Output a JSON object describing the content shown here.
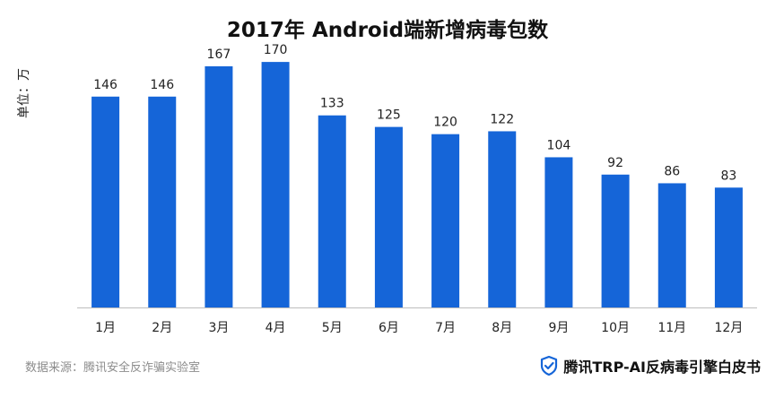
{
  "chart_data": {
    "type": "bar",
    "title": "2017年 Android端新增病毒包数",
    "ylabel": "单位：万",
    "xlabel": "",
    "categories": [
      "1月",
      "2月",
      "3月",
      "4月",
      "5月",
      "6月",
      "7月",
      "8月",
      "9月",
      "10月",
      "11月",
      "12月"
    ],
    "values": [
      146,
      146,
      167,
      170,
      133,
      125,
      120,
      122,
      104,
      92,
      86,
      83
    ],
    "ylim": [
      0,
      180
    ],
    "grid": false,
    "bar_color": "#1565d8"
  },
  "footer": {
    "source": "数据来源：腾讯安全反诈骗实验室",
    "brand": "腾讯TRP-AI反病毒引擎白皮书"
  },
  "icons": {
    "brand_icon": "shield-check-icon"
  },
  "colors": {
    "brand_icon": "#1565d8"
  }
}
